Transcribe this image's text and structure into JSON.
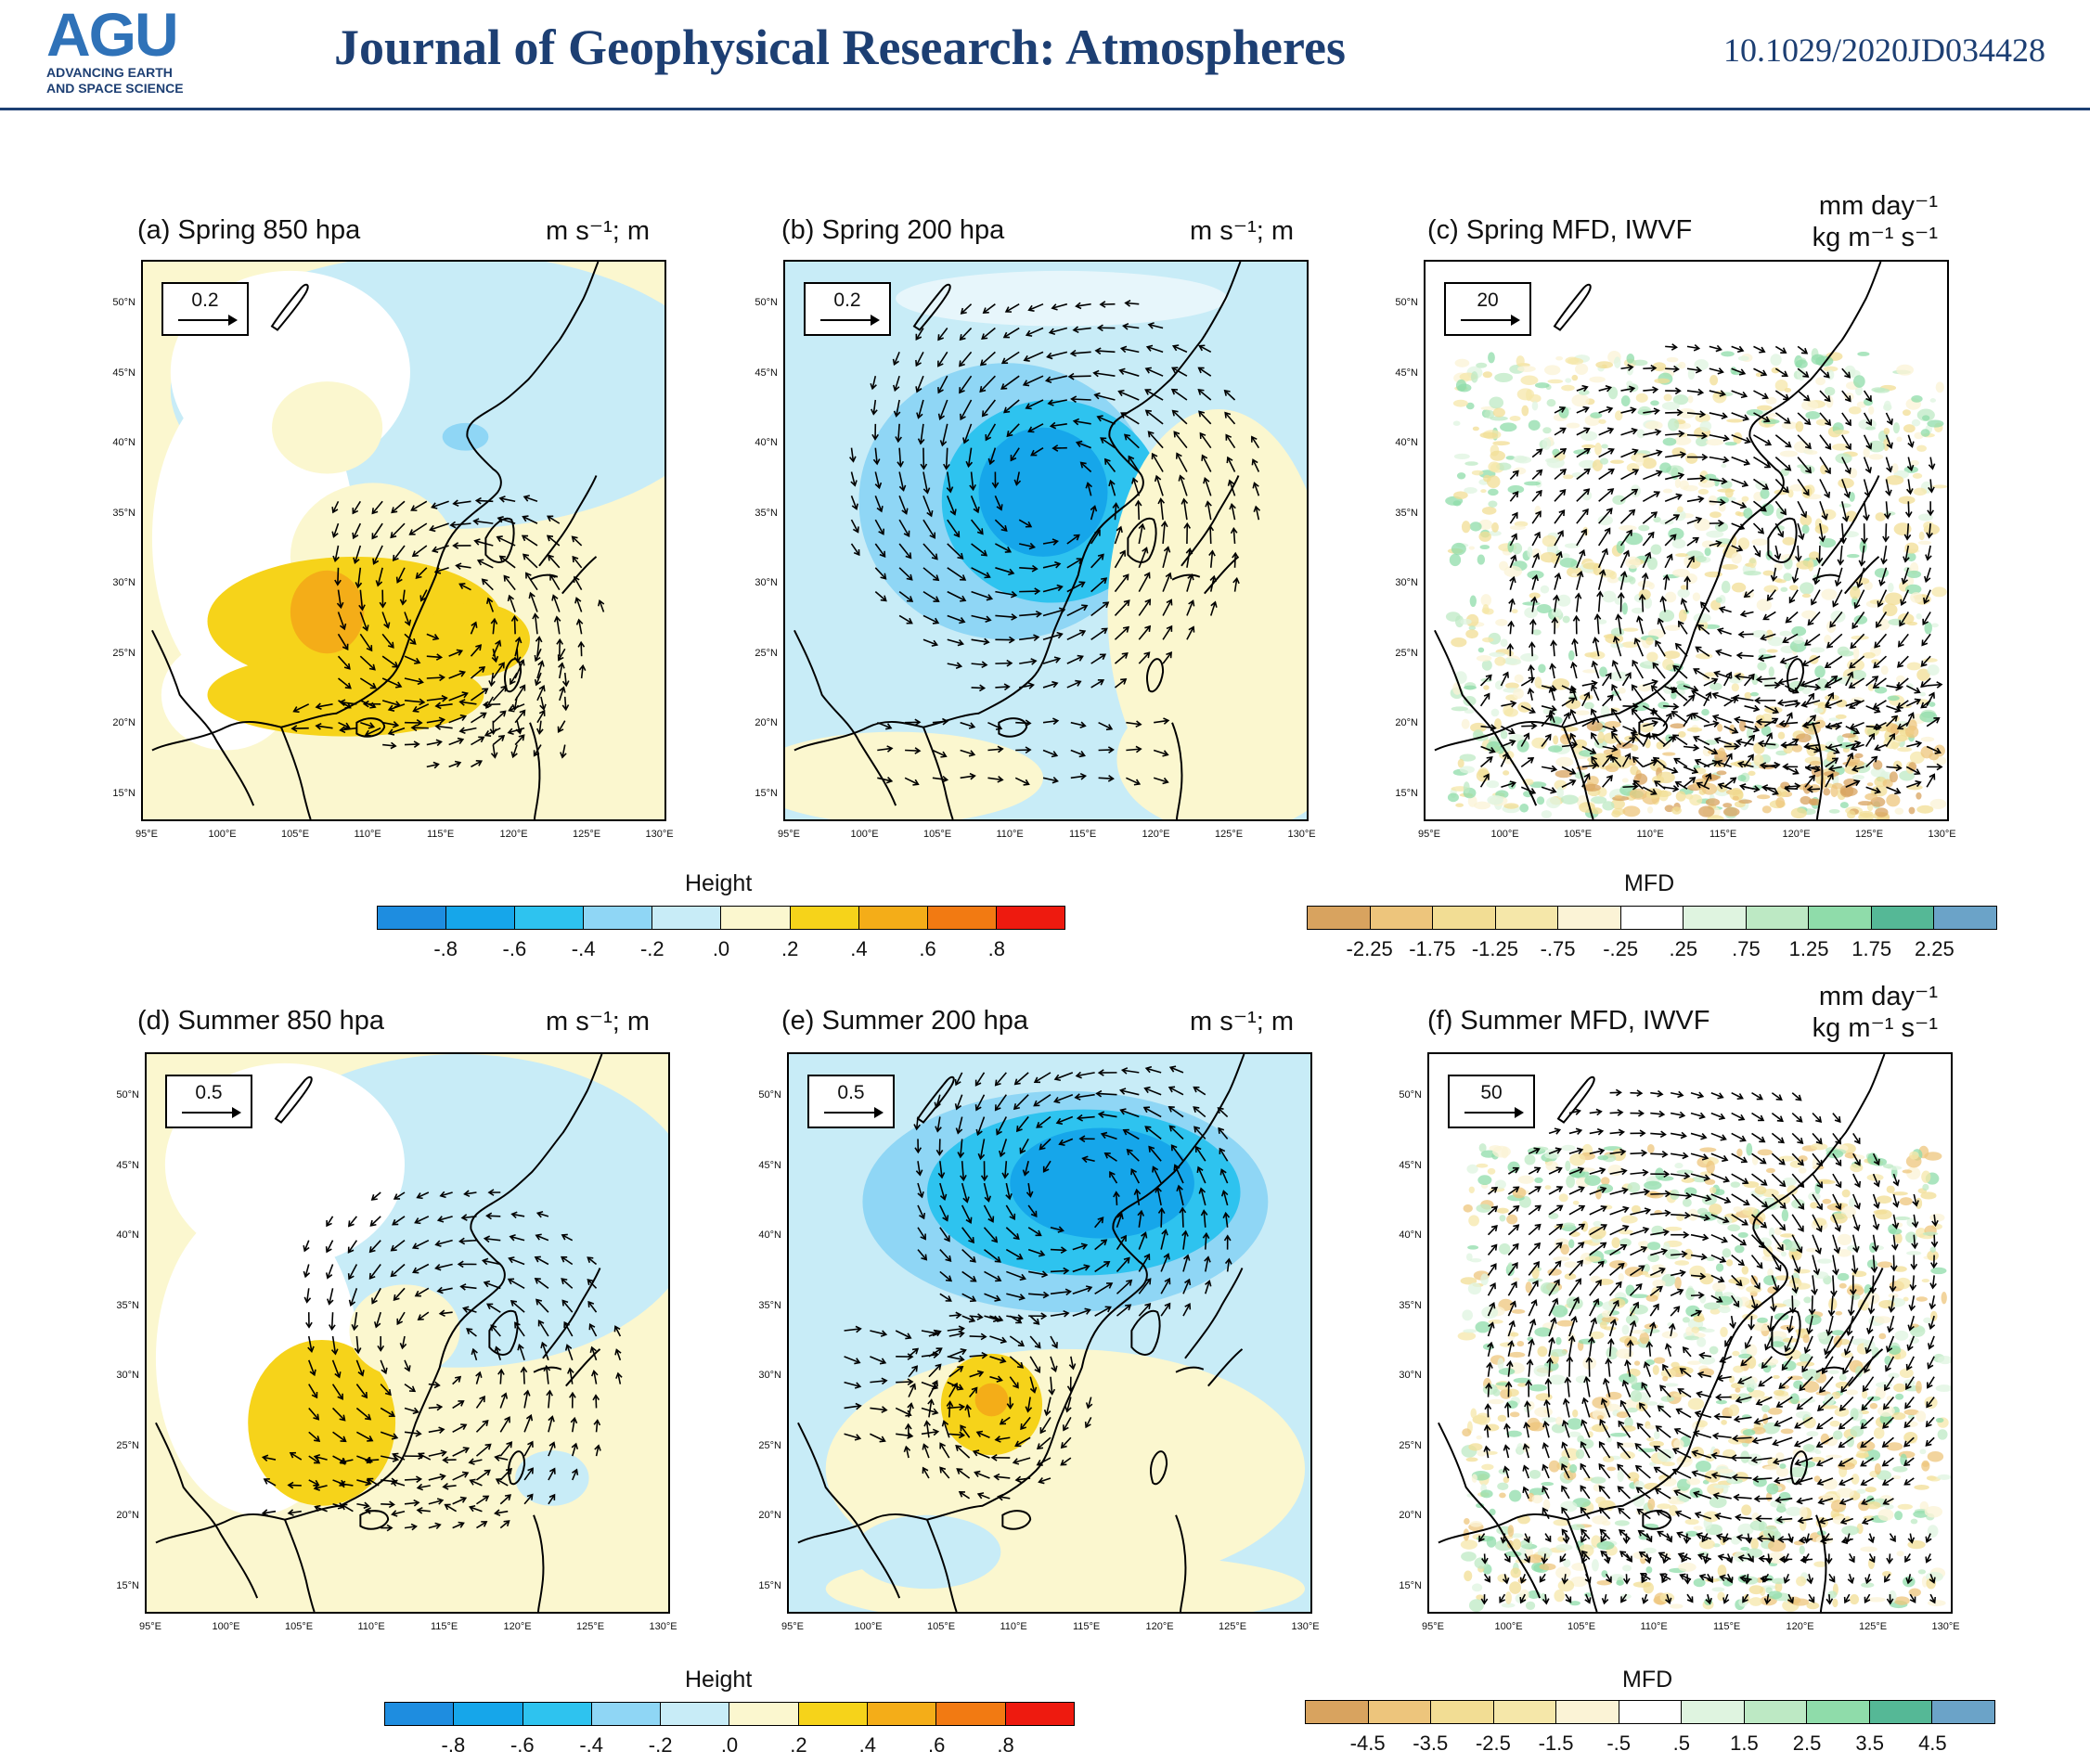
{
  "header": {
    "logo_text": "AGU",
    "logo_line1": "ADVANCING EARTH",
    "logo_line2": "AND SPACE SCIENCE",
    "journal": "Journal of Geophysical Research: Atmospheres",
    "doi": "10.1029/2020JD034428"
  },
  "axes": {
    "lat_ticks": [
      "50°N",
      "45°N",
      "40°N",
      "35°N",
      "30°N",
      "25°N",
      "20°N",
      "15°N"
    ],
    "lon_ticks": [
      "95°E",
      "100°E",
      "105°E",
      "110°E",
      "115°E",
      "120°E",
      "125°E",
      "130°E"
    ]
  },
  "panels": [
    {
      "title": "(a) Spring 850 hpa",
      "units": "m s⁻¹; m",
      "units2": "",
      "ref": "0.2"
    },
    {
      "title": "(b) Spring 200 hpa",
      "units": "m s⁻¹; m",
      "units2": "",
      "ref": "0.2"
    },
    {
      "title": "(c) Spring MFD, IWVF",
      "units": "mm day⁻¹",
      "units2": "kg m⁻¹ s⁻¹",
      "ref": "20"
    },
    {
      "title": "(d) Summer 850 hpa",
      "units": "m s⁻¹; m",
      "units2": "",
      "ref": "0.5"
    },
    {
      "title": "(e) Summer 200 hpa",
      "units": "m s⁻¹; m",
      "units2": "",
      "ref": "0.5"
    },
    {
      "title": "(f) Summer MFD, IWVF",
      "units": "mm day⁻¹",
      "units2": "kg m⁻¹ s⁻¹",
      "ref": "50"
    }
  ],
  "colorbars": [
    {
      "title": "Height",
      "labels": [
        "-.8",
        "-.6",
        "-.4",
        "-.2",
        ".0",
        ".2",
        ".4",
        ".6",
        ".8"
      ],
      "colors": [
        "#1e8de0",
        "#16a6ea",
        "#2ec3ef",
        "#8fd6f5",
        "#c8ecf7",
        "#fbf7cf",
        "#f6d31a",
        "#f4ad18",
        "#f27a12",
        "#ee1a0f"
      ]
    },
    {
      "title": "MFD",
      "labels": [
        "-2.25",
        "-1.75",
        "-1.25",
        "-.75",
        "-.25",
        ".25",
        ".75",
        "1.25",
        "1.75",
        "2.25"
      ],
      "colors": [
        "#d8a35f",
        "#edc57c",
        "#f2dd94",
        "#f5e7a9",
        "#fbf3d6",
        "#ffffff",
        "#dff4e0",
        "#bde9c4",
        "#8fdcaa",
        "#55b896",
        "#6ba3c8"
      ]
    },
    {
      "title": "Height",
      "labels": [
        "-.8",
        "-.6",
        "-.4",
        "-.2",
        ".0",
        ".2",
        ".4",
        ".6",
        ".8"
      ],
      "colors": [
        "#1e8de0",
        "#16a6ea",
        "#2ec3ef",
        "#8fd6f5",
        "#c8ecf7",
        "#fbf7cf",
        "#f6d31a",
        "#f4ad18",
        "#f27a12",
        "#ee1a0f"
      ]
    },
    {
      "title": "MFD",
      "labels": [
        "-4.5",
        "-3.5",
        "-2.5",
        "-1.5",
        "-.5",
        ".5",
        "1.5",
        "2.5",
        "3.5",
        "4.5"
      ],
      "colors": [
        "#d8a35f",
        "#edc57c",
        "#f2dd94",
        "#f5e7a9",
        "#fbf3d6",
        "#ffffff",
        "#dff4e0",
        "#bde9c4",
        "#8fdcaa",
        "#55b896",
        "#6ba3c8"
      ]
    }
  ]
}
